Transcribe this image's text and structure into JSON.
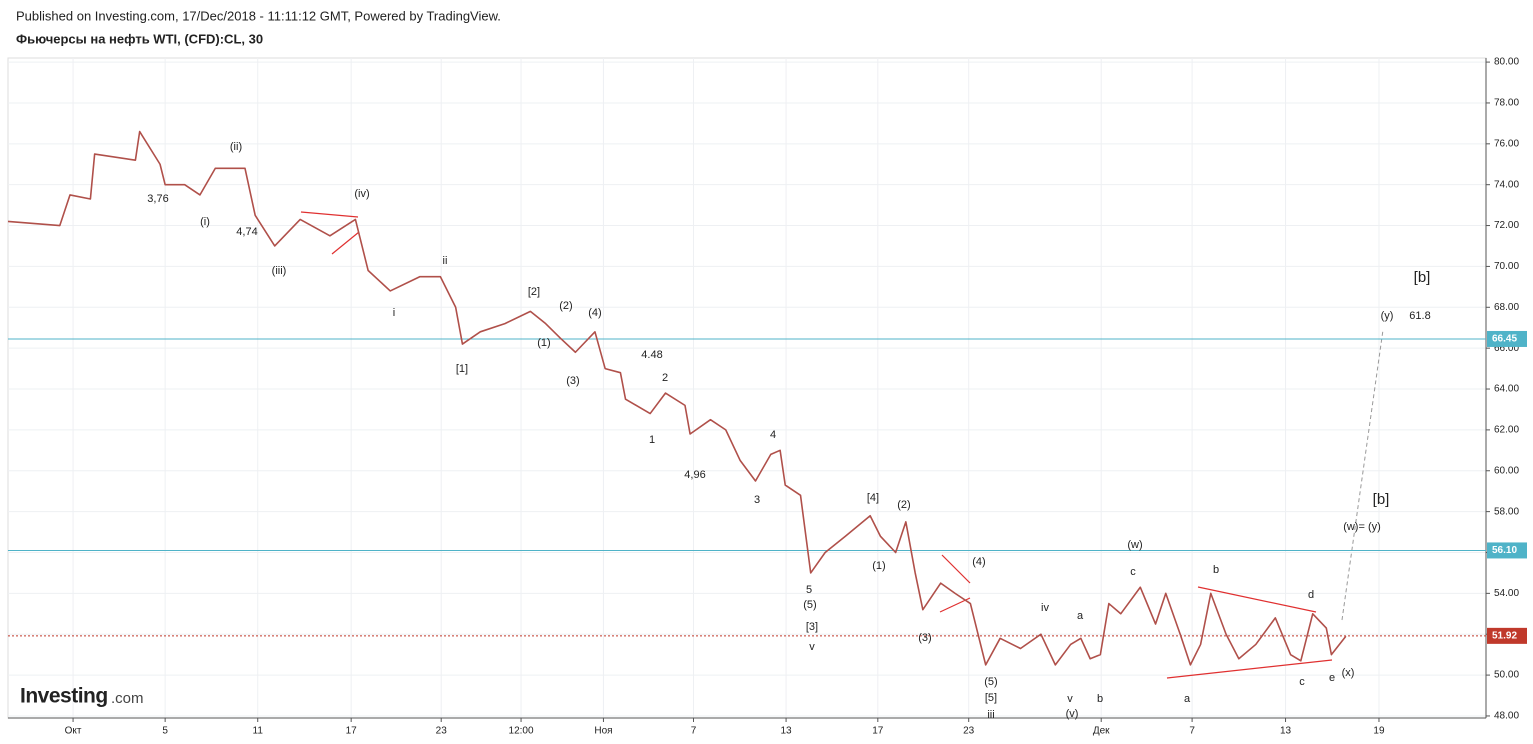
{
  "header": {
    "published": "Published on Investing.com, 17/Dec/2018 - 11:11:12 GMT, Powered by TradingView.",
    "instrument": "Фьючерсы на нефть WTI, (CFD):CL, 30",
    "logo": "Investing",
    "logo_suffix": ".com"
  },
  "chart_data": {
    "type": "line",
    "x": [
      0,
      6.1,
      7.3,
      9.7,
      10.2,
      15.0,
      15.5,
      17.9,
      18.5,
      20.8,
      22.6,
      24.4,
      27.9,
      29.1,
      31.4,
      34.4,
      37.9,
      40.9,
      42.4,
      45.0,
      48.5,
      50.9,
      52.7,
      53.5,
      55.6,
      58.5,
      61.5,
      63.3,
      65.0,
      66.8,
      69.1,
      70.3,
      72.1,
      72.7,
      75.6,
      77.4,
      79.7,
      80.3,
      82.7,
      84.5,
      86.2,
      88.0,
      89.8,
      90.9,
      91.5,
      93.3,
      94.5,
      96.2,
      98.6,
      101.5,
      102.7,
      104.5,
      105.7,
      106.8,
      107.7,
      109.8,
      111.5,
      113.3,
      115.1,
      116.8,
      119.2,
      121.6,
      123.3,
      125.1,
      126.3,
      127.4,
      128.6,
      129.6,
      131.0,
      133.3,
      135.1,
      136.3,
      138.0,
      139.2,
      140.4,
      141.6,
      143.4,
      144.9,
      146.9,
      149.2,
      151.0,
      152.2,
      153.6,
      155.2,
      155.8,
      157.5
    ],
    "series": [
      {
        "name": "CL",
        "color": "#b0504a",
        "values": [
          72.2,
          72.0,
          73.5,
          73.3,
          75.5,
          75.2,
          76.6,
          75.0,
          74.0,
          74.0,
          73.5,
          74.8,
          74.8,
          72.5,
          71.0,
          72.3,
          71.5,
          72.3,
          69.8,
          68.8,
          69.5,
          69.5,
          68.0,
          66.2,
          66.8,
          67.2,
          67.8,
          67.2,
          66.5,
          65.8,
          66.8,
          65.0,
          64.8,
          63.5,
          62.8,
          63.8,
          63.2,
          61.8,
          62.5,
          62.0,
          60.5,
          59.5,
          60.8,
          61.0,
          59.3,
          58.8,
          55.0,
          56.0,
          56.8,
          57.8,
          56.8,
          56.0,
          57.5,
          55.0,
          53.2,
          54.5,
          54.0,
          53.5,
          50.5,
          51.8,
          51.3,
          52.0,
          50.5,
          51.5,
          51.8,
          50.8,
          51.0,
          53.5,
          53.0,
          54.3,
          52.5,
          54.0,
          52.0,
          50.5,
          51.5,
          54.0,
          52.0,
          50.8,
          51.5,
          52.8,
          51.0,
          50.7,
          53.0,
          52.3,
          51.0,
          51.9
        ]
      }
    ],
    "xlim": [
      0,
      174
    ],
    "xticks": [
      {
        "value": 7.66,
        "label": "Окт"
      },
      {
        "value": 18.5,
        "label": "5"
      },
      {
        "value": 29.4,
        "label": "11"
      },
      {
        "value": 40.4,
        "label": "17"
      },
      {
        "value": 51,
        "label": "23"
      },
      {
        "value": 60.4,
        "label": "12:00"
      },
      {
        "value": 70.1,
        "label": "Ноя"
      },
      {
        "value": 80.7,
        "label": "7"
      },
      {
        "value": 91.6,
        "label": "13"
      },
      {
        "value": 102.4,
        "label": "17"
      },
      {
        "value": 113.1,
        "label": "23"
      },
      {
        "value": 128.7,
        "label": "Дек"
      },
      {
        "value": 139.4,
        "label": "7"
      },
      {
        "value": 150.4,
        "label": "13"
      },
      {
        "value": 161.4,
        "label": "19"
      }
    ],
    "ylim": [
      47.9,
      80.2
    ],
    "yticks": [
      {
        "value": 48,
        "label": "48.00"
      },
      {
        "value": 50,
        "label": "50.00"
      },
      {
        "value": 52,
        "label": "52.00"
      },
      {
        "value": 54,
        "label": "54.00"
      },
      {
        "value": 56,
        "label": "56.00"
      },
      {
        "value": 58,
        "label": "58.00"
      },
      {
        "value": 60,
        "label": "60.00"
      },
      {
        "value": 62,
        "label": "62.00"
      },
      {
        "value": 64,
        "label": "64.00"
      },
      {
        "value": 66,
        "label": "66.00"
      },
      {
        "value": 68,
        "label": "68.00"
      },
      {
        "value": 70,
        "label": "70.00"
      },
      {
        "value": 72,
        "label": "72.00"
      },
      {
        "value": 74,
        "label": "74.00"
      },
      {
        "value": 76,
        "label": "76.00"
      },
      {
        "value": 78,
        "label": "78.00"
      },
      {
        "value": 80,
        "label": "80.00"
      }
    ],
    "grid": true,
    "hlines": [
      {
        "value": 66.45,
        "label": "66.45",
        "color": "#4fb3c8"
      },
      {
        "value": 56.1,
        "label": "56.10",
        "color": "#4fb3c8"
      },
      {
        "value": 51.92,
        "label": "51.92",
        "color": "#c0392b"
      }
    ],
    "annotations": [
      "3,76",
      "(i)",
      "(ii)",
      "4,74",
      "(iii)",
      "(iv)",
      "ii",
      "i",
      "[2]",
      "(2)",
      "(4)",
      "(1)",
      "[1]",
      "(3)",
      "4.48",
      "2",
      "1",
      "4",
      "4,96",
      "3",
      "[4]",
      "(2)",
      "(1)",
      "5",
      "(5)",
      "[3]",
      "v",
      "(4)",
      "(3)",
      "(5)",
      "[5]",
      "iii",
      "iv",
      "a",
      "v",
      "b",
      "(v)",
      "(w)",
      "c",
      "b",
      "a",
      "d",
      "c",
      "e",
      "(x)",
      "(y)",
      "61.8",
      "[b]",
      "[b]",
      "(w)= (y)"
    ]
  }
}
